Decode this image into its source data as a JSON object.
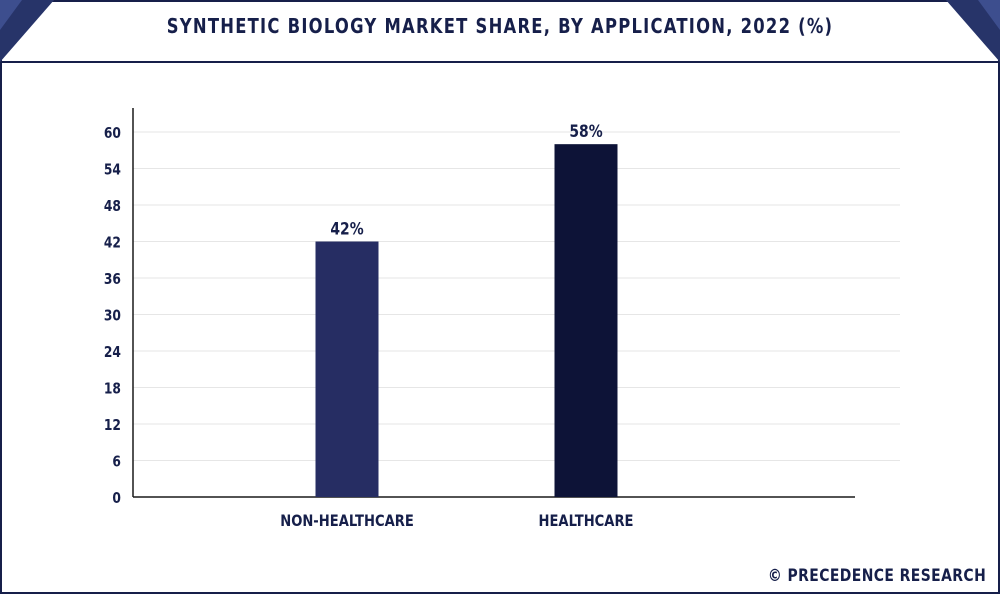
{
  "header": {
    "title": "SYNTHETIC BIOLOGY MARKET SHARE, BY APPLICATION, 2022 (%)"
  },
  "footer": {
    "credit": "© PRECEDENCE RESEARCH"
  },
  "colors": {
    "frame": "#161f4a",
    "corner_accent": "#3d4e8e",
    "bar_non_healthcare": "#262d63",
    "bar_healthcare": "#0d1337",
    "gridline": "#e6e6e6",
    "axis": "#1a1a1a",
    "text": "#161f4a"
  },
  "chart_data": {
    "type": "bar",
    "title": "SYNTHETIC BIOLOGY MARKET SHARE, BY APPLICATION, 2022 (%)",
    "categories": [
      "NON-HEALTHCARE",
      "HEALTHCARE"
    ],
    "values": [
      42,
      58
    ],
    "data_labels": [
      "42%",
      "58%"
    ],
    "bar_colors": [
      "#262d63",
      "#0d1337"
    ],
    "xlabel": "",
    "ylabel": "",
    "ylim": [
      0,
      60
    ],
    "yticks": [
      0,
      6,
      12,
      18,
      24,
      30,
      36,
      42,
      48,
      54,
      60
    ],
    "grid": true,
    "legend": "none"
  }
}
